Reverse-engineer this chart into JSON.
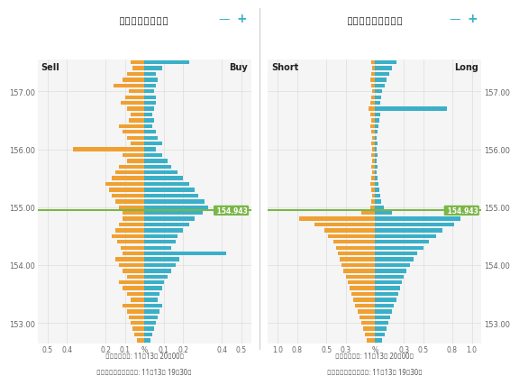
{
  "title_left": "オープンオーダー",
  "title_right": "オープンポジション",
  "label_sell": "Sell",
  "label_buy": "Buy",
  "label_short": "Short",
  "label_long": "Long",
  "current_price": 154.943,
  "current_price_label": "154.943",
  "price_line_color": "#7ab648",
  "price_label_bg": "#7ab648",
  "bg_color": "#ffffff",
  "panel_bg": "#f5f5f5",
  "grid_color": "#dddddd",
  "orange_color": "#f0a030",
  "teal_color": "#3ab0c8",
  "footer_line1": "最新更新時間: 11月13日 20時00分",
  "footer_line2": "スナップショット時間: 11月13日 19時30分",
  "minus_color": "#3ab0c8",
  "plus_color": "#3ab0c8",
  "y_min": 152.65,
  "y_max": 157.55,
  "y_ticks": [
    153.0,
    154.0,
    155.0,
    156.0,
    157.0
  ],
  "left_xlim": 0.55,
  "right_xlim": 1.1,
  "left_xtick_vals": [
    -0.5,
    -0.4,
    -0.2,
    -0.1,
    0.0,
    0.1,
    0.2,
    0.4,
    0.5
  ],
  "left_xtick_labs": [
    "0.5",
    "0.4",
    "0.2",
    "0.1",
    "%",
    "0.1",
    "0.2",
    "0.4",
    "0.5"
  ],
  "right_xtick_vals": [
    -1.0,
    -0.8,
    -0.5,
    -0.3,
    0.0,
    0.3,
    0.5,
    0.8,
    1.0
  ],
  "right_xtick_labs": [
    "1.0",
    "0.8",
    "0.5",
    "0.3",
    "%",
    "0.3",
    "0.5",
    "0.8",
    "1.0"
  ],
  "prices": [
    157.5,
    157.4,
    157.3,
    157.2,
    157.1,
    157.0,
    156.9,
    156.8,
    156.7,
    156.6,
    156.5,
    156.4,
    156.3,
    156.2,
    156.1,
    156.0,
    155.9,
    155.8,
    155.7,
    155.6,
    155.5,
    155.4,
    155.3,
    155.2,
    155.1,
    155.0,
    154.9,
    154.8,
    154.7,
    154.6,
    154.5,
    154.4,
    154.3,
    154.2,
    154.1,
    154.0,
    153.9,
    153.8,
    153.7,
    153.6,
    153.5,
    153.4,
    153.3,
    153.2,
    153.1,
    153.0,
    152.9,
    152.8,
    152.7
  ],
  "sell": [
    0.07,
    0.06,
    0.09,
    0.11,
    0.16,
    0.08,
    0.1,
    0.12,
    0.09,
    0.07,
    0.08,
    0.13,
    0.11,
    0.09,
    0.07,
    0.37,
    0.11,
    0.09,
    0.13,
    0.15,
    0.17,
    0.2,
    0.18,
    0.17,
    0.15,
    0.13,
    0.11,
    0.11,
    0.13,
    0.15,
    0.17,
    0.14,
    0.12,
    0.11,
    0.15,
    0.13,
    0.11,
    0.09,
    0.13,
    0.11,
    0.09,
    0.07,
    0.11,
    0.09,
    0.08,
    0.07,
    0.06,
    0.05,
    0.04
  ],
  "buy": [
    0.23,
    0.09,
    0.06,
    0.07,
    0.06,
    0.05,
    0.06,
    0.06,
    0.05,
    0.04,
    0.05,
    0.04,
    0.06,
    0.07,
    0.09,
    0.06,
    0.09,
    0.12,
    0.14,
    0.17,
    0.2,
    0.23,
    0.26,
    0.28,
    0.31,
    0.33,
    0.3,
    0.26,
    0.23,
    0.2,
    0.17,
    0.16,
    0.14,
    0.42,
    0.18,
    0.16,
    0.14,
    0.12,
    0.1,
    0.09,
    0.08,
    0.07,
    0.09,
    0.08,
    0.07,
    0.06,
    0.05,
    0.04,
    0.03
  ],
  "short": [
    0.04,
    0.03,
    0.04,
    0.05,
    0.04,
    0.03,
    0.04,
    0.05,
    0.06,
    0.05,
    0.04,
    0.05,
    0.04,
    0.03,
    0.04,
    0.03,
    0.04,
    0.03,
    0.04,
    0.03,
    0.04,
    0.05,
    0.04,
    0.03,
    0.04,
    0.05,
    0.14,
    0.78,
    0.62,
    0.52,
    0.48,
    0.43,
    0.4,
    0.38,
    0.36,
    0.34,
    0.32,
    0.3,
    0.28,
    0.26,
    0.24,
    0.22,
    0.2,
    0.18,
    0.16,
    0.14,
    0.12,
    0.1,
    0.08
  ],
  "long": [
    0.22,
    0.18,
    0.15,
    0.12,
    0.1,
    0.08,
    0.07,
    0.06,
    0.74,
    0.06,
    0.05,
    0.04,
    0.03,
    0.02,
    0.03,
    0.02,
    0.03,
    0.02,
    0.03,
    0.02,
    0.03,
    0.04,
    0.05,
    0.06,
    0.07,
    0.09,
    0.18,
    0.88,
    0.82,
    0.7,
    0.63,
    0.56,
    0.5,
    0.44,
    0.4,
    0.36,
    0.33,
    0.3,
    0.28,
    0.26,
    0.24,
    0.22,
    0.2,
    0.18,
    0.16,
    0.14,
    0.12,
    0.1,
    0.08
  ]
}
